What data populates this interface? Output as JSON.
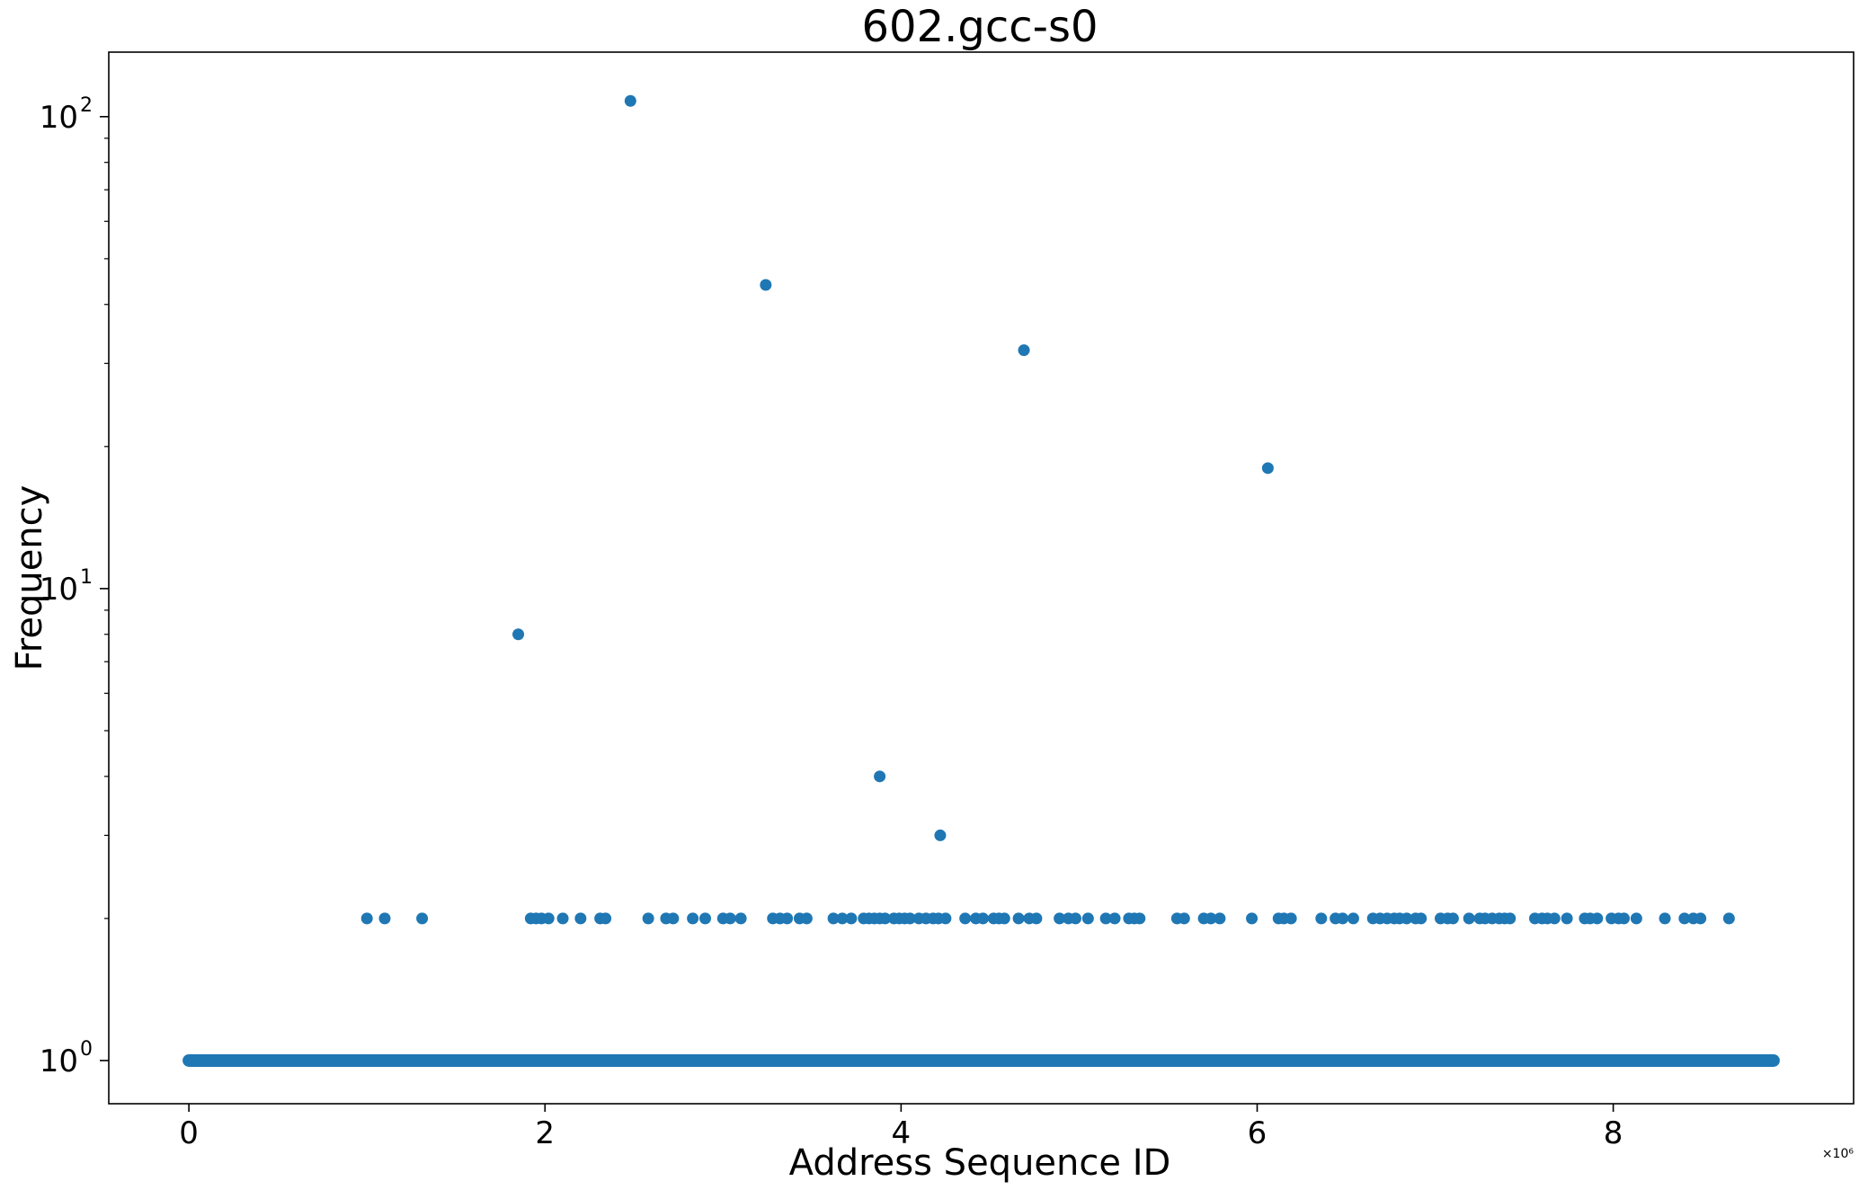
{
  "chart_data": {
    "type": "scatter",
    "title": "602.gcc-s0",
    "xlabel": "Address Sequence ID",
    "ylabel": "Frequency",
    "x_offset_label": "×10⁶",
    "x_scale": 1000000,
    "xlim": [
      -0.45,
      9.35
    ],
    "ylim": [
      0.81,
      137
    ],
    "y_scale": "log",
    "grid": false,
    "x_ticks": [
      {
        "value": 0,
        "label": "0"
      },
      {
        "value": 2,
        "label": "2"
      },
      {
        "value": 4,
        "label": "4"
      },
      {
        "value": 6,
        "label": "6"
      },
      {
        "value": 8,
        "label": "8"
      }
    ],
    "y_ticks": [
      {
        "value": 1,
        "base": "10",
        "exp": "0"
      },
      {
        "value": 10,
        "base": "10",
        "exp": "1"
      },
      {
        "value": 100,
        "base": "10",
        "exp": "2"
      }
    ],
    "color": "#1f77b4",
    "baseline": {
      "y": 1,
      "x_start": 0,
      "x_end": 8.9
    },
    "points": [
      {
        "x": 2.48,
        "y": 108
      },
      {
        "x": 3.24,
        "y": 44
      },
      {
        "x": 4.69,
        "y": 32
      },
      {
        "x": 6.06,
        "y": 18
      },
      {
        "x": 1.85,
        "y": 8
      },
      {
        "x": 3.88,
        "y": 4
      },
      {
        "x": 4.22,
        "y": 3
      },
      {
        "x": 1.0,
        "y": 2
      },
      {
        "x": 1.1,
        "y": 2
      },
      {
        "x": 1.31,
        "y": 2
      },
      {
        "x": 1.92,
        "y": 2
      },
      {
        "x": 1.95,
        "y": 2
      },
      {
        "x": 1.98,
        "y": 2
      },
      {
        "x": 2.02,
        "y": 2
      },
      {
        "x": 2.1,
        "y": 2
      },
      {
        "x": 2.2,
        "y": 2
      },
      {
        "x": 2.31,
        "y": 2
      },
      {
        "x": 2.34,
        "y": 2
      },
      {
        "x": 2.58,
        "y": 2
      },
      {
        "x": 2.68,
        "y": 2
      },
      {
        "x": 2.72,
        "y": 2
      },
      {
        "x": 2.83,
        "y": 2
      },
      {
        "x": 2.9,
        "y": 2
      },
      {
        "x": 3.0,
        "y": 2
      },
      {
        "x": 3.04,
        "y": 2
      },
      {
        "x": 3.1,
        "y": 2
      },
      {
        "x": 3.28,
        "y": 2
      },
      {
        "x": 3.32,
        "y": 2
      },
      {
        "x": 3.36,
        "y": 2
      },
      {
        "x": 3.43,
        "y": 2
      },
      {
        "x": 3.47,
        "y": 2
      },
      {
        "x": 3.62,
        "y": 2
      },
      {
        "x": 3.67,
        "y": 2
      },
      {
        "x": 3.72,
        "y": 2
      },
      {
        "x": 3.79,
        "y": 2
      },
      {
        "x": 3.82,
        "y": 2
      },
      {
        "x": 3.85,
        "y": 2
      },
      {
        "x": 3.88,
        "y": 2
      },
      {
        "x": 3.91,
        "y": 2
      },
      {
        "x": 3.96,
        "y": 2
      },
      {
        "x": 3.99,
        "y": 2
      },
      {
        "x": 4.02,
        "y": 2
      },
      {
        "x": 4.05,
        "y": 2
      },
      {
        "x": 4.1,
        "y": 2
      },
      {
        "x": 4.14,
        "y": 2
      },
      {
        "x": 4.18,
        "y": 2
      },
      {
        "x": 4.21,
        "y": 2
      },
      {
        "x": 4.25,
        "y": 2
      },
      {
        "x": 4.36,
        "y": 2
      },
      {
        "x": 4.42,
        "y": 2
      },
      {
        "x": 4.46,
        "y": 2
      },
      {
        "x": 4.52,
        "y": 2
      },
      {
        "x": 4.55,
        "y": 2
      },
      {
        "x": 4.58,
        "y": 2
      },
      {
        "x": 4.66,
        "y": 2
      },
      {
        "x": 4.72,
        "y": 2
      },
      {
        "x": 4.76,
        "y": 2
      },
      {
        "x": 4.89,
        "y": 2
      },
      {
        "x": 4.94,
        "y": 2
      },
      {
        "x": 4.98,
        "y": 2
      },
      {
        "x": 5.05,
        "y": 2
      },
      {
        "x": 5.15,
        "y": 2
      },
      {
        "x": 5.2,
        "y": 2
      },
      {
        "x": 5.28,
        "y": 2
      },
      {
        "x": 5.31,
        "y": 2
      },
      {
        "x": 5.34,
        "y": 2
      },
      {
        "x": 5.55,
        "y": 2
      },
      {
        "x": 5.59,
        "y": 2
      },
      {
        "x": 5.7,
        "y": 2
      },
      {
        "x": 5.74,
        "y": 2
      },
      {
        "x": 5.79,
        "y": 2
      },
      {
        "x": 5.97,
        "y": 2
      },
      {
        "x": 6.12,
        "y": 2
      },
      {
        "x": 6.15,
        "y": 2
      },
      {
        "x": 6.19,
        "y": 2
      },
      {
        "x": 6.36,
        "y": 2
      },
      {
        "x": 6.44,
        "y": 2
      },
      {
        "x": 6.48,
        "y": 2
      },
      {
        "x": 6.54,
        "y": 2
      },
      {
        "x": 6.65,
        "y": 2
      },
      {
        "x": 6.69,
        "y": 2
      },
      {
        "x": 6.73,
        "y": 2
      },
      {
        "x": 6.77,
        "y": 2
      },
      {
        "x": 6.8,
        "y": 2
      },
      {
        "x": 6.84,
        "y": 2
      },
      {
        "x": 6.89,
        "y": 2
      },
      {
        "x": 6.92,
        "y": 2
      },
      {
        "x": 7.03,
        "y": 2
      },
      {
        "x": 7.07,
        "y": 2
      },
      {
        "x": 7.1,
        "y": 2
      },
      {
        "x": 7.19,
        "y": 2
      },
      {
        "x": 7.25,
        "y": 2
      },
      {
        "x": 7.28,
        "y": 2
      },
      {
        "x": 7.32,
        "y": 2
      },
      {
        "x": 7.36,
        "y": 2
      },
      {
        "x": 7.39,
        "y": 2
      },
      {
        "x": 7.42,
        "y": 2
      },
      {
        "x": 7.56,
        "y": 2
      },
      {
        "x": 7.6,
        "y": 2
      },
      {
        "x": 7.63,
        "y": 2
      },
      {
        "x": 7.67,
        "y": 2
      },
      {
        "x": 7.74,
        "y": 2
      },
      {
        "x": 7.84,
        "y": 2
      },
      {
        "x": 7.87,
        "y": 2
      },
      {
        "x": 7.91,
        "y": 2
      },
      {
        "x": 7.99,
        "y": 2
      },
      {
        "x": 8.03,
        "y": 2
      },
      {
        "x": 8.06,
        "y": 2
      },
      {
        "x": 8.13,
        "y": 2
      },
      {
        "x": 8.29,
        "y": 2
      },
      {
        "x": 8.4,
        "y": 2
      },
      {
        "x": 8.45,
        "y": 2
      },
      {
        "x": 8.49,
        "y": 2
      },
      {
        "x": 8.65,
        "y": 2
      }
    ]
  }
}
